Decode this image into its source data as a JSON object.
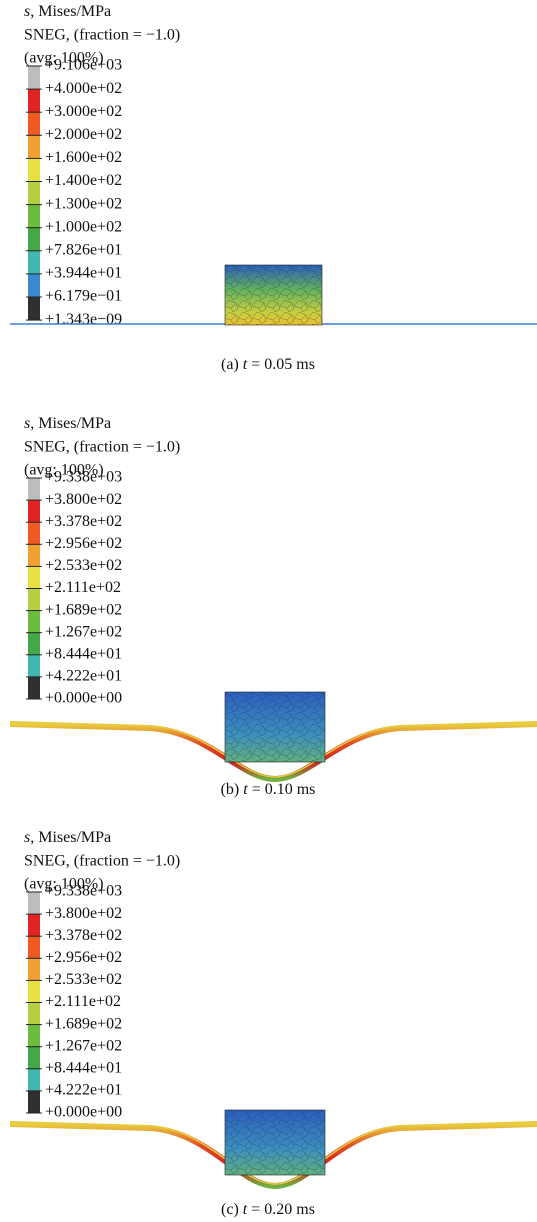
{
  "panels": [
    {
      "title": {
        "variable": "s",
        "rest": ", Mises/MPa"
      },
      "subtitle": "SNEG, (fraction = −1.0)",
      "average": "(avg: 100%)",
      "legend": [
        "+9.106e+03",
        "+4.000e+02",
        "+3.000e+02",
        "+2.000e+02",
        "+1.600e+02",
        "+1.400e+02",
        "+1.300e+02",
        "+1.000e+02",
        "+7.826e+01",
        "+3.944e+01",
        "+6.179e−01",
        "+1.343e−09"
      ],
      "caption": {
        "prefix": "(a) ",
        "variable": "t",
        "suffix": " = 0.05 ms"
      }
    },
    {
      "title": {
        "variable": "s",
        "rest": ", Mises/MPa"
      },
      "subtitle": "SNEG, (fraction = −1.0)",
      "average": "(avg: 100%)",
      "legend": [
        "+9.338e+03",
        "+3.800e+02",
        "+3.378e+02",
        "+2.956e+02",
        "+2.533e+02",
        "+2.111e+02",
        "+1.689e+02",
        "+1.267e+02",
        "+8.444e+01",
        "+4.222e+01",
        "+0.000e+00"
      ],
      "caption": {
        "prefix": "(b) ",
        "variable": "t",
        "suffix": " = 0.10 ms"
      }
    },
    {
      "title": {
        "variable": "s",
        "rest": ", Mises/MPa"
      },
      "subtitle": "SNEG, (fraction = −1.0)",
      "average": "(avg: 100%)",
      "legend": [
        "+9.338e+03",
        "+3.800e+02",
        "+3.378e+02",
        "+2.956e+02",
        "+2.533e+02",
        "+2.111e+02",
        "+1.689e+02",
        "+1.267e+02",
        "+8.444e+01",
        "+4.222e+01",
        "+0.000e+00"
      ],
      "caption": {
        "prefix": "(c) ",
        "variable": "t",
        "suffix": " = 0.20 ms"
      }
    }
  ]
}
